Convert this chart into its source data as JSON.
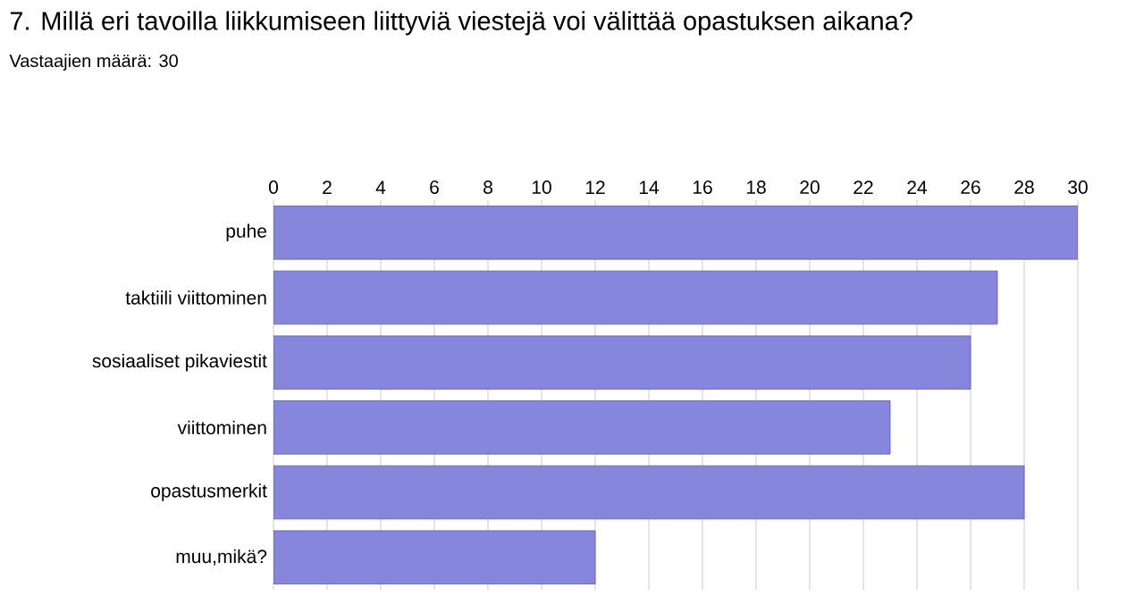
{
  "chart_data": {
    "type": "bar",
    "orientation": "horizontal",
    "title": "7. Millä eri tavoilla liikkumiseen liittyviä viestejä voi välittää opastuksen aikana?",
    "subtitle": "Vastaajien määrä: 30",
    "categories": [
      "puhe",
      "taktiili viittominen",
      "sosiaaliset pikaviestit",
      "viittominen",
      "opastusmerkit",
      "muu,mikä?"
    ],
    "values": [
      30,
      27,
      26,
      23,
      28,
      12
    ],
    "color": "#8686dc",
    "xlim": [
      0,
      30
    ],
    "xticks": [
      0,
      2,
      4,
      6,
      8,
      10,
      12,
      14,
      16,
      18,
      20,
      22,
      24,
      26,
      28,
      30
    ],
    "grid": "x"
  }
}
